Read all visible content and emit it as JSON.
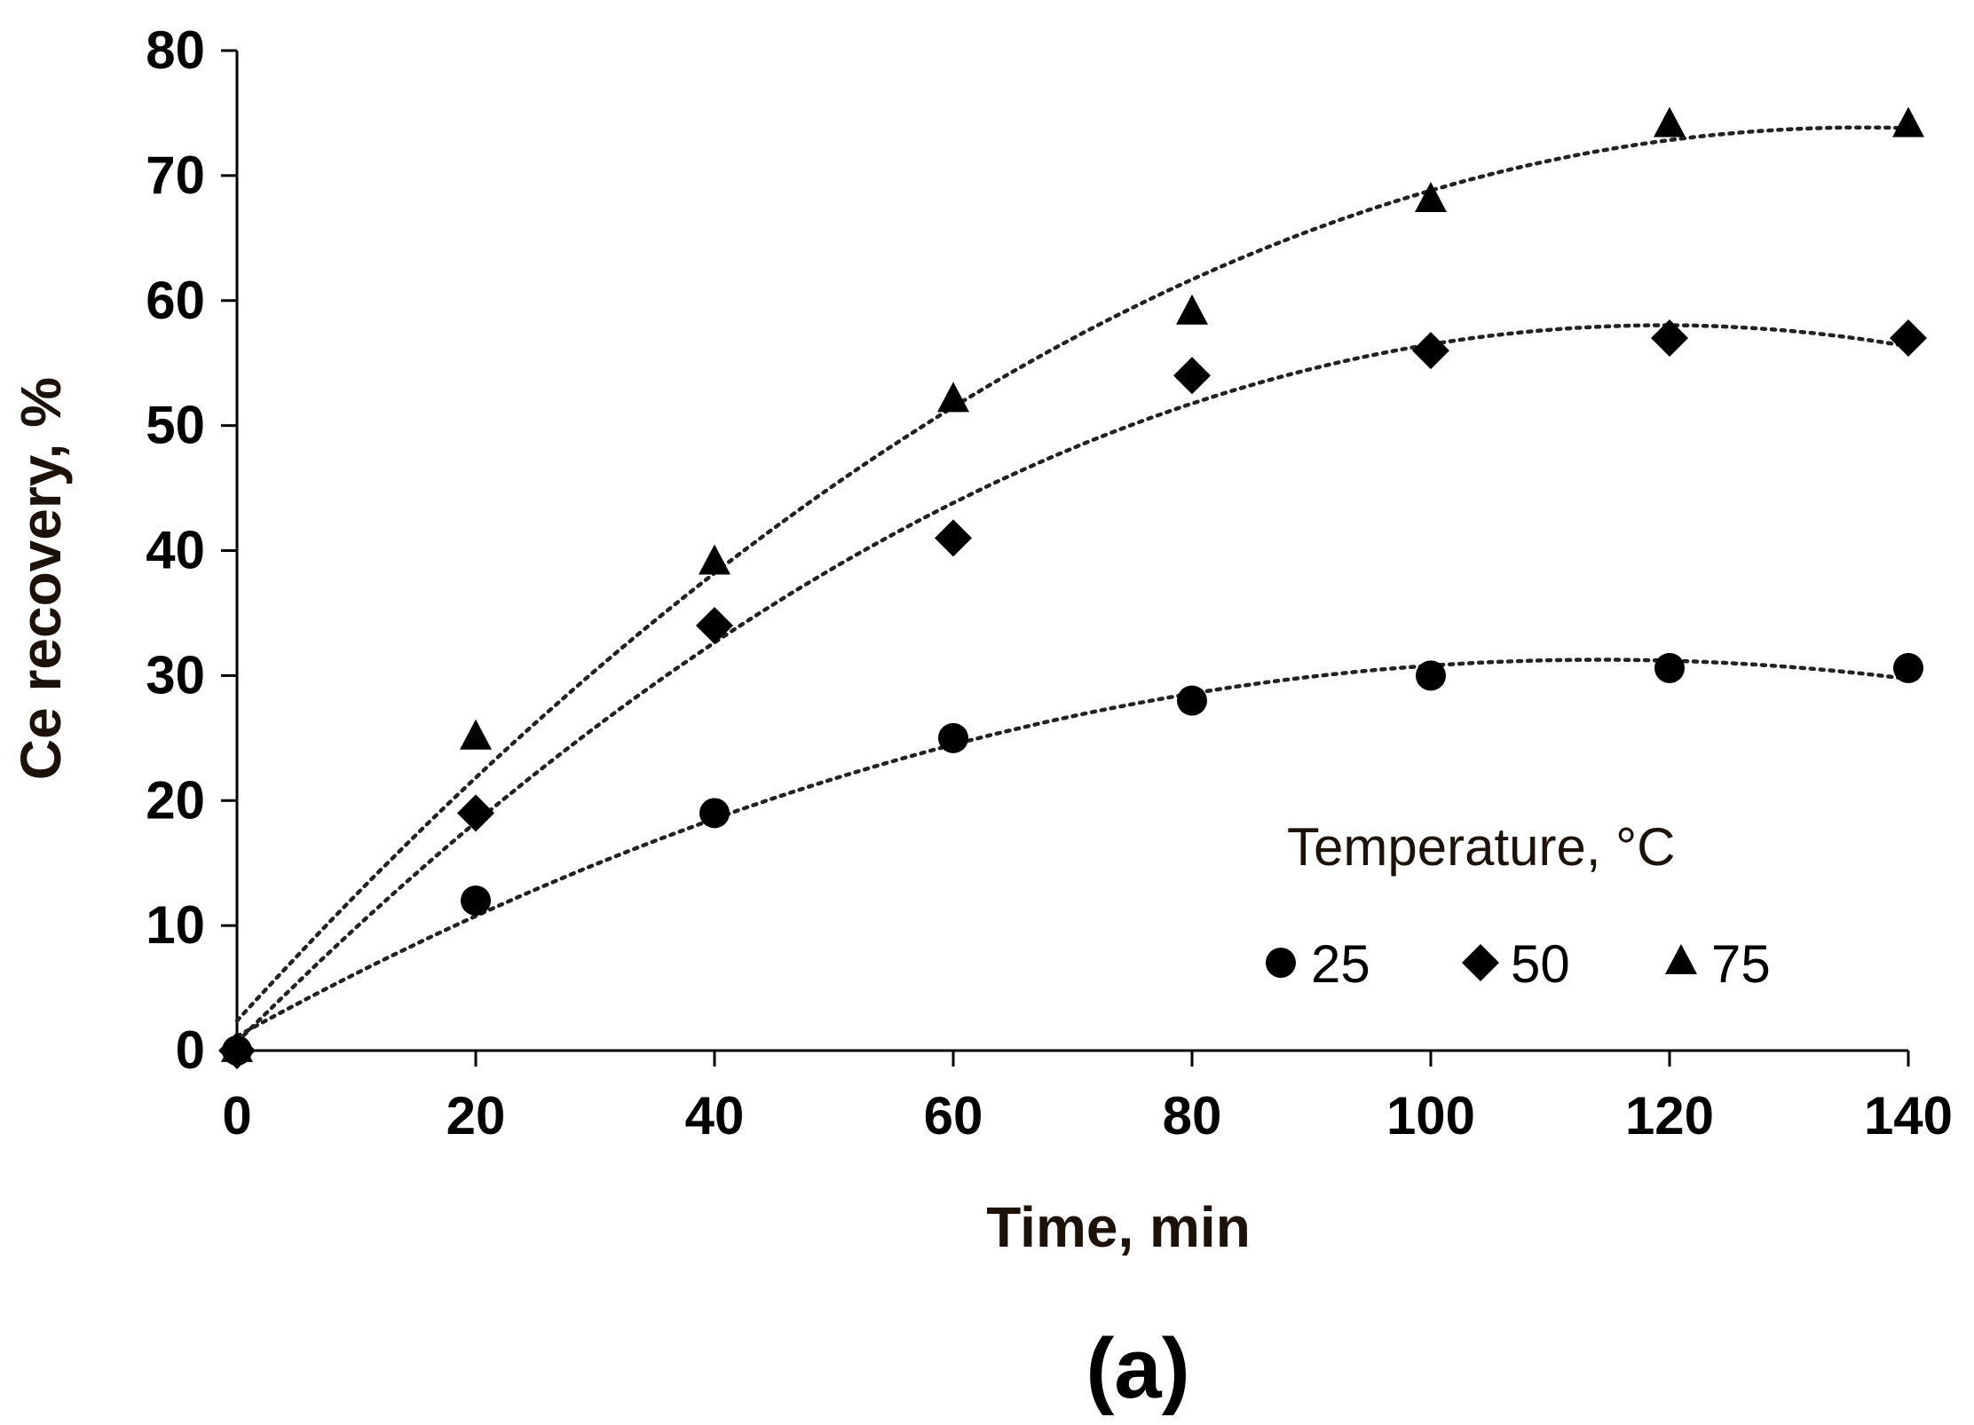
{
  "chart_data": {
    "type": "scatter",
    "title": "",
    "xlabel": "Time, min",
    "ylabel": "Ce recovery, %",
    "xlim": [
      0,
      140
    ],
    "ylim": [
      0,
      80
    ],
    "xticks": [
      0,
      20,
      40,
      60,
      80,
      100,
      120,
      140
    ],
    "yticks": [
      0,
      10,
      20,
      30,
      40,
      50,
      60,
      70,
      80
    ],
    "grid": false,
    "trendlines": "dotted polynomial fit",
    "legend": {
      "title": "Temperature, °C",
      "placement": "bottom-right"
    },
    "panel_label": "(a)",
    "x": [
      0,
      20,
      40,
      60,
      80,
      100,
      120,
      140
    ],
    "series": [
      {
        "name": "25",
        "marker": "circle",
        "values": [
          0,
          12,
          19,
          25,
          28,
          30,
          30.6,
          30.6
        ]
      },
      {
        "name": "50",
        "marker": "diamond",
        "values": [
          0,
          19,
          34,
          41,
          54,
          56,
          57,
          57
        ]
      },
      {
        "name": "75",
        "marker": "triangle",
        "values": [
          0,
          25,
          39,
          52,
          59,
          68,
          74,
          74
        ]
      }
    ]
  }
}
